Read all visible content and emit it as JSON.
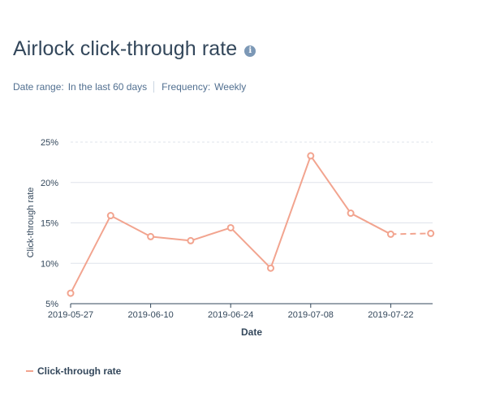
{
  "header": {
    "title": "Airlock click-through rate",
    "info_icon": "info-icon"
  },
  "filters": {
    "date_range_label": "Date range:",
    "date_range_value": "In the last 60 days",
    "frequency_label": "Frequency:",
    "frequency_value": "Weekly"
  },
  "colors": {
    "line": "#f2a48f",
    "grid": "#dfe3eb",
    "axis": "#33475b",
    "text": "#33475b"
  },
  "chart_data": {
    "type": "line",
    "xlabel": "Date",
    "ylabel": "Click-through rate",
    "ylim": [
      5,
      25
    ],
    "y_ticks": [
      5,
      10,
      15,
      20,
      25
    ],
    "y_tick_labels": [
      "5%",
      "10%",
      "15%",
      "20%",
      "25%"
    ],
    "x_tick_labels": [
      "2019-05-27",
      "2019-06-10",
      "2019-06-24",
      "2019-07-08",
      "2019-07-22"
    ],
    "x": [
      "2019-05-27",
      "2019-06-03",
      "2019-06-10",
      "2019-06-17",
      "2019-06-24",
      "2019-07-01",
      "2019-07-08",
      "2019-07-15",
      "2019-07-22",
      "2019-07-29"
    ],
    "grid": true,
    "legend": "bottom-left",
    "series": [
      {
        "name": "Click-through rate",
        "values": [
          6.3,
          15.9,
          13.3,
          12.8,
          14.4,
          9.4,
          23.3,
          16.2,
          13.6,
          13.7
        ],
        "dashed_last_segment": true
      }
    ]
  }
}
